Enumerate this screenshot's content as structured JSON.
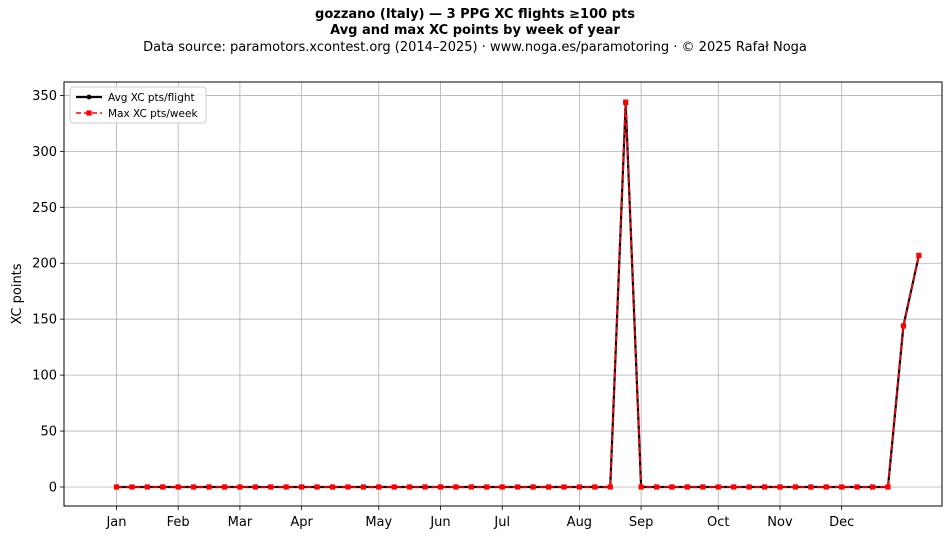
{
  "title_line1": "gozzano (Italy)  —  3 PPG XC flights ≥100 pts",
  "title_line2": "Avg and max XC points by week of year",
  "subtitle": "Data source: paramotors.xcontest.org (2014–2025)  ·  www.noga.es/paramotoring  ·  © 2025 Rafał Noga",
  "chart_data": {
    "type": "line",
    "title": "Avg and max XC points by week of year",
    "xlabel": "",
    "ylabel": "XC points",
    "ylim": [
      -17,
      362
    ],
    "xlim": [
      -2.4,
      54.5
    ],
    "grid": true,
    "legend_position": "upper-left",
    "x_ticks": [
      {
        "label": "Jan",
        "week": 1
      },
      {
        "label": "Feb",
        "week": 5
      },
      {
        "label": "Mar",
        "week": 9
      },
      {
        "label": "Apr",
        "week": 13
      },
      {
        "label": "May",
        "week": 18
      },
      {
        "label": "Jun",
        "week": 22
      },
      {
        "label": "Jul",
        "week": 26
      },
      {
        "label": "Aug",
        "week": 31
      },
      {
        "label": "Sep",
        "week": 35
      },
      {
        "label": "Oct",
        "week": 40
      },
      {
        "label": "Nov",
        "week": 44
      },
      {
        "label": "Dec",
        "week": 48
      }
    ],
    "y_ticks": [
      0,
      50,
      100,
      150,
      200,
      250,
      300,
      350
    ],
    "x": [
      1,
      2,
      3,
      4,
      5,
      6,
      7,
      8,
      9,
      10,
      11,
      12,
      13,
      14,
      15,
      16,
      17,
      18,
      19,
      20,
      21,
      22,
      23,
      24,
      25,
      26,
      27,
      28,
      29,
      30,
      31,
      32,
      33,
      34,
      35,
      36,
      37,
      38,
      39,
      40,
      41,
      42,
      43,
      44,
      45,
      46,
      47,
      48,
      49,
      50,
      51,
      52,
      53
    ],
    "series": [
      {
        "name": "Avg XC pts/flight",
        "color": "#000000",
        "style": "solid-circle",
        "values": [
          0,
          0,
          0,
          0,
          0,
          0,
          0,
          0,
          0,
          0,
          0,
          0,
          0,
          0,
          0,
          0,
          0,
          0,
          0,
          0,
          0,
          0,
          0,
          0,
          0,
          0,
          0,
          0,
          0,
          0,
          0,
          0,
          0,
          343,
          0,
          0,
          0,
          0,
          0,
          0,
          0,
          0,
          0,
          0,
          0,
          0,
          0,
          0,
          0,
          0,
          0,
          144,
          207
        ]
      },
      {
        "name": "Max XC pts/week",
        "color": "#ff0000",
        "style": "dashed-square",
        "values": [
          0,
          0,
          0,
          0,
          0,
          0,
          0,
          0,
          0,
          0,
          0,
          0,
          0,
          0,
          0,
          0,
          0,
          0,
          0,
          0,
          0,
          0,
          0,
          0,
          0,
          0,
          0,
          0,
          0,
          0,
          0,
          0,
          0,
          344,
          0,
          0,
          0,
          0,
          0,
          0,
          0,
          0,
          0,
          0,
          0,
          0,
          0,
          0,
          0,
          0,
          0,
          144,
          207
        ]
      }
    ]
  }
}
